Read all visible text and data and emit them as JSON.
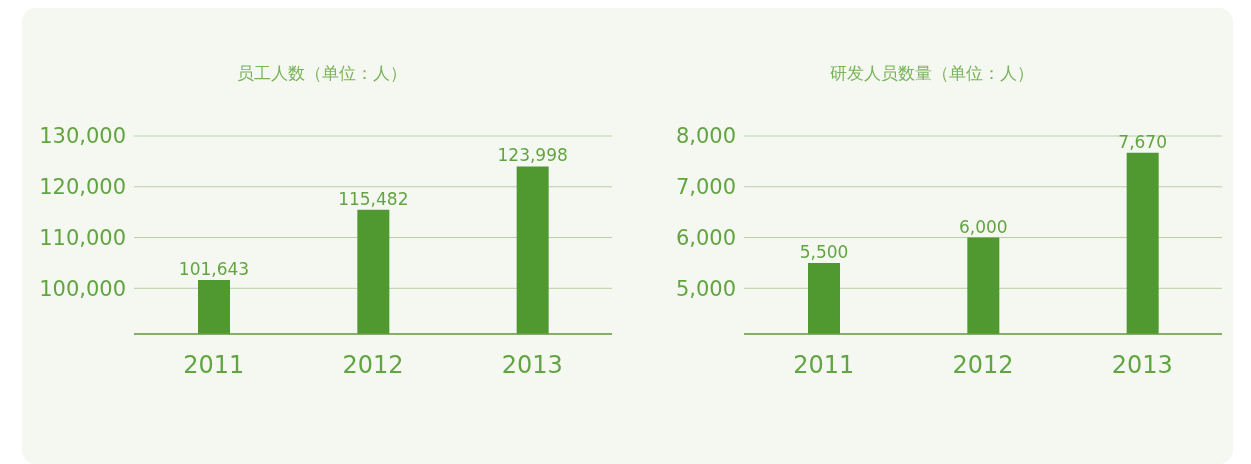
{
  "chart_data": [
    {
      "type": "bar",
      "title": "员工人数（单位：人）",
      "categories": [
        "2011",
        "2012",
        "2013"
      ],
      "values": [
        101643,
        115482,
        123998
      ],
      "value_labels": [
        "101,643",
        "115,482",
        "123,998"
      ],
      "color": "#4f9930",
      "ylim": [
        91000,
        130000
      ],
      "yticks": [
        {
          "value": 100000,
          "label": "100,000"
        },
        {
          "value": 110000,
          "label": "110,000"
        },
        {
          "value": 120000,
          "label": "120,000"
        },
        {
          "value": 130000,
          "label": "130,000"
        }
      ],
      "grid": "y"
    },
    {
      "type": "bar",
      "title": "研发人员数量（单位：人）",
      "categories": [
        "2011",
        "2012",
        "2013"
      ],
      "values": [
        5500,
        6000,
        7670
      ],
      "value_labels": [
        "5,500",
        "6,000",
        "7,670"
      ],
      "color": "#4f9930",
      "ylim": [
        4100,
        8000
      ],
      "yticks": [
        {
          "value": 5000,
          "label": "5,000"
        },
        {
          "value": 6000,
          "label": "6,000"
        },
        {
          "value": 7000,
          "label": "7,000"
        },
        {
          "value": 8000,
          "label": "8,000"
        }
      ],
      "grid": "y"
    }
  ]
}
